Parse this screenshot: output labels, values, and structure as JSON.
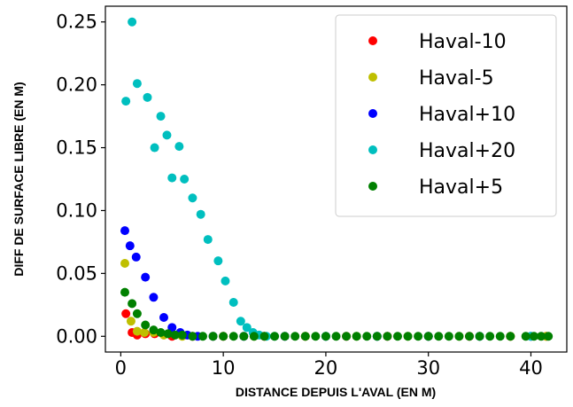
{
  "chart_data": {
    "type": "scatter",
    "title": "",
    "xlabel": "DISTANCE DEPUIS L'AVAL (EN M)",
    "ylabel": "DIFF DE SURFACE LIBRE (EN M)",
    "xlim": [
      -1.5,
      43.5
    ],
    "ylim": [
      -0.0125,
      0.2625
    ],
    "xticks": [
      0,
      10,
      20,
      30,
      40
    ],
    "yticks": [
      0.0,
      0.05,
      0.1,
      0.15,
      0.2,
      0.25
    ],
    "xtick_labels": [
      "0",
      "10",
      "20",
      "30",
      "40"
    ],
    "ytick_labels": [
      "0.00",
      "0.05",
      "0.10",
      "0.15",
      "0.20",
      "0.25"
    ],
    "grid": false,
    "legend_position": "top-right",
    "series": [
      {
        "name": "Haval-10",
        "color": "#ff0000",
        "x": [
          0.5,
          1.1,
          1.6,
          2.4,
          3.3,
          5.0,
          7.0,
          10.0,
          14.0,
          18.0,
          22.0,
          26.0,
          30.0,
          34.0,
          38.0,
          41.5
        ],
        "y": [
          0.018,
          0.003,
          0.001,
          0.002,
          0.002,
          0.0,
          0.0,
          0.0,
          0.0,
          0.0,
          0.0,
          0.0,
          0.0,
          0.0,
          0.0,
          0.0
        ]
      },
      {
        "name": "Haval-5",
        "color": "#bfbf00",
        "x": [
          0.4,
          1.0,
          1.6,
          2.3,
          3.2,
          4.2,
          6.0,
          9.0,
          13.0,
          18.0,
          23.0,
          28.0,
          33.0,
          38.0,
          41.5
        ],
        "y": [
          0.058,
          0.012,
          0.004,
          0.003,
          0.003,
          0.001,
          0.0,
          0.0,
          0.0,
          0.0,
          0.0,
          0.0,
          0.0,
          0.0,
          0.0
        ]
      },
      {
        "name": "Haval+10",
        "color": "#0000ff",
        "x": [
          0.4,
          0.9,
          1.5,
          2.4,
          3.2,
          4.2,
          5.0,
          5.8,
          6.5,
          7.5,
          9.0,
          12.0,
          16.0,
          20.0,
          25.0,
          30.0,
          35.0,
          40.0
        ],
        "y": [
          0.084,
          0.072,
          0.063,
          0.047,
          0.031,
          0.015,
          0.007,
          0.003,
          0.001,
          0.0,
          0.0,
          0.0,
          0.0,
          0.0,
          0.0,
          0.0,
          0.0,
          0.0
        ]
      },
      {
        "name": "Haval+20",
        "color": "#00bfbf",
        "x": [
          0.5,
          1.1,
          1.6,
          2.6,
          3.3,
          3.9,
          4.5,
          5.0,
          5.7,
          6.2,
          7.0,
          7.8,
          8.5,
          9.5,
          10.2,
          11.0,
          11.7,
          12.3,
          12.9,
          13.5,
          14.2,
          15.0,
          20.0,
          25.0,
          30.0,
          35.0,
          40.0
        ],
        "y": [
          0.187,
          0.25,
          0.201,
          0.19,
          0.15,
          0.175,
          0.16,
          0.126,
          0.151,
          0.125,
          0.11,
          0.097,
          0.077,
          0.06,
          0.044,
          0.027,
          0.012,
          0.007,
          0.003,
          0.001,
          0.0,
          0.0,
          0.0,
          0.0,
          0.0,
          0.0,
          0.0
        ]
      },
      {
        "name": "Haval+5",
        "color": "#008000",
        "x": [
          0.4,
          1.1,
          1.6,
          2.4,
          3.2,
          3.9,
          4.6,
          5.3,
          6.0,
          7.0,
          8.0,
          9.0,
          10.0,
          11.0,
          12.0,
          13.0,
          14.0,
          15.0,
          16.0,
          17.0,
          18.0,
          19.0,
          20.0,
          21.0,
          22.0,
          23.0,
          24.0,
          25.0,
          26.0,
          27.0,
          28.0,
          29.0,
          30.0,
          31.0,
          32.0,
          33.0,
          34.0,
          35.0,
          36.0,
          37.0,
          38.0,
          39.5,
          40.3,
          41.0,
          41.7
        ],
        "y": [
          0.035,
          0.026,
          0.018,
          0.009,
          0.005,
          0.003,
          0.002,
          0.001,
          0.001,
          0.0,
          0.0,
          0.0,
          0.0,
          0.0,
          0.0,
          0.0,
          0.0,
          0.0,
          0.0,
          0.0,
          0.0,
          0.0,
          0.0,
          0.0,
          0.0,
          0.0,
          0.0,
          0.0,
          0.0,
          0.0,
          0.0,
          0.0,
          0.0,
          0.0,
          0.0,
          0.0,
          0.0,
          0.0,
          0.0,
          0.0,
          0.0,
          0.0,
          0.0,
          0.0,
          0.0
        ]
      }
    ]
  }
}
